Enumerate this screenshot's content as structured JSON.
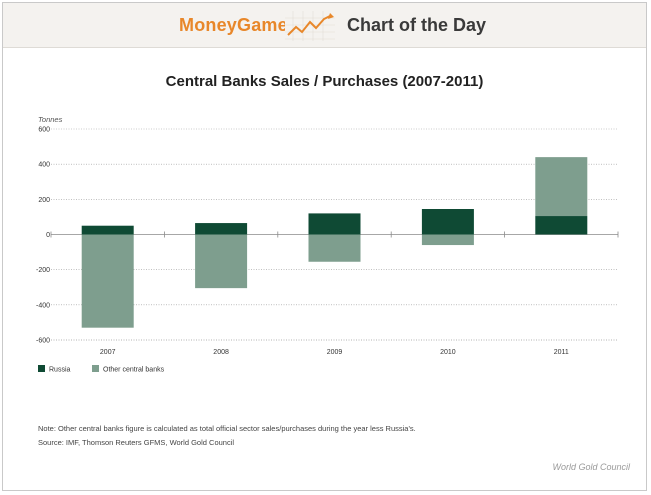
{
  "header": {
    "brand": "MoneyGame",
    "section": "Chart of the Day",
    "logo_icon": "rising-line-chart-icon",
    "brand_color": "#e8872a"
  },
  "chart_data": {
    "type": "bar",
    "stacked": true,
    "title": "Central Banks Sales / Purchases (2007-2011)",
    "ylabel": "Tonnes",
    "xlabel": "",
    "categories": [
      "2007",
      "2008",
      "2009",
      "2010",
      "2011"
    ],
    "series": [
      {
        "name": "Russia",
        "values": [
          50,
          65,
          120,
          145,
          105
        ],
        "color": "#0f4a34"
      },
      {
        "name": "Other central banks",
        "values": [
          -530,
          -305,
          -155,
          -60,
          335
        ],
        "color": "#7e9e8e"
      }
    ],
    "ylim": [
      -600,
      600
    ],
    "yticks": [
      -600,
      -400,
      -200,
      0,
      200,
      400,
      600
    ],
    "ytick_labels": [
      "-600",
      "-400",
      "-200",
      "0",
      "200",
      "400",
      "600"
    ],
    "grid": "horizontal dotted",
    "legend": "bottom-left"
  },
  "footer": {
    "note": "Note: Other central banks figure is calculated as total official sector sales/purchases during the year less Russia's.",
    "source": "Source: IMF, Thomson Reuters GFMS, World Gold Council",
    "credit": "World Gold Council"
  }
}
